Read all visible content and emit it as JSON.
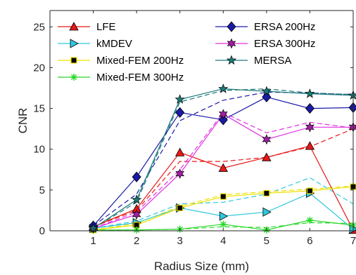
{
  "chart_data": {
    "type": "line",
    "xlabel": "Radius Size (mm)",
    "ylabel": "CNR",
    "xlim": [
      0,
      7
    ],
    "ylim": [
      0,
      27
    ],
    "xticks": [
      1,
      2,
      3,
      4,
      5,
      6,
      7
    ],
    "yticks": [
      0,
      5,
      10,
      15,
      20,
      25
    ],
    "grid": false,
    "legend": "top, two columns, no border",
    "x": [
      1,
      2,
      3,
      4,
      5,
      6,
      7
    ],
    "series": [
      {
        "name": "LFE",
        "color": "#e81717",
        "marker": "triangle-up",
        "marker_fill": "#e81717",
        "values": [
          0.5,
          2.7,
          9.6,
          7.7,
          9.0,
          10.4,
          0.1
        ]
      },
      {
        "name": "kMDEV",
        "color": "#2fc8dc",
        "marker": "triangle-right",
        "marker_fill": "#2fc8dc",
        "values": [
          0.3,
          1.0,
          2.8,
          1.8,
          2.3,
          4.6,
          0.2
        ]
      },
      {
        "name": "Mixed-FEM 200Hz",
        "color": "#f0e000",
        "marker": "square",
        "marker_fill": "#f0e000",
        "values": [
          0.1,
          0.7,
          2.8,
          4.2,
          4.6,
          4.9,
          5.4
        ]
      },
      {
        "name": "Mixed-FEM 300Hz",
        "color": "#27d827",
        "marker": "asterisk",
        "marker_fill": "#27d827",
        "values": [
          0.1,
          0.1,
          0.2,
          0.8,
          0.1,
          1.3,
          0.7
        ]
      },
      {
        "name": "ERSA 200Hz",
        "color": "#1a1aa6",
        "marker": "diamond",
        "marker_fill": "#1a1aa6",
        "values": [
          0.6,
          6.6,
          14.5,
          13.6,
          16.4,
          15.0,
          15.1
        ]
      },
      {
        "name": "ERSA 300Hz",
        "color": "#e030e0",
        "marker": "hexagram",
        "marker_fill": "#a020a0",
        "values": [
          0.3,
          2.0,
          7.0,
          14.3,
          11.2,
          12.7,
          12.7
        ]
      },
      {
        "name": "MERSA",
        "color": "#1d7b7b",
        "marker": "pentagram",
        "marker_fill": "#1d7b7b",
        "values": [
          0.3,
          3.8,
          16.1,
          17.4,
          17.1,
          16.8,
          16.6
        ]
      },
      {
        "color": "#e81717",
        "dashed": true,
        "values": [
          0.5,
          2.5,
          8.5,
          8.5,
          9.0,
          10.3,
          12.5
        ]
      },
      {
        "color": "#2fc8dc",
        "dashed": true,
        "values": [
          0.3,
          1.2,
          3.3,
          3.5,
          4.5,
          6.5,
          3.3
        ]
      },
      {
        "color": "#f0e000",
        "dashed": true,
        "values": [
          0.1,
          0.9,
          3.0,
          4.4,
          4.8,
          5.1,
          5.5
        ]
      },
      {
        "color": "#27d827",
        "dashed": true,
        "values": [
          0.1,
          0.1,
          0.2,
          0.5,
          0.4,
          1.0,
          0.9
        ]
      },
      {
        "color": "#1a1aa6",
        "dashed": true,
        "values": [
          0.6,
          4.5,
          13.5,
          16.0,
          17.0,
          16.9,
          16.7
        ]
      },
      {
        "color": "#e030e0",
        "dashed": true,
        "values": [
          0.3,
          2.3,
          7.5,
          14.5,
          12.0,
          13.3,
          12.6
        ]
      },
      {
        "color": "#1d7b7b",
        "dashed": true,
        "values": [
          0.3,
          3.5,
          15.8,
          17.2,
          17.4,
          16.9,
          16.7
        ]
      }
    ]
  }
}
